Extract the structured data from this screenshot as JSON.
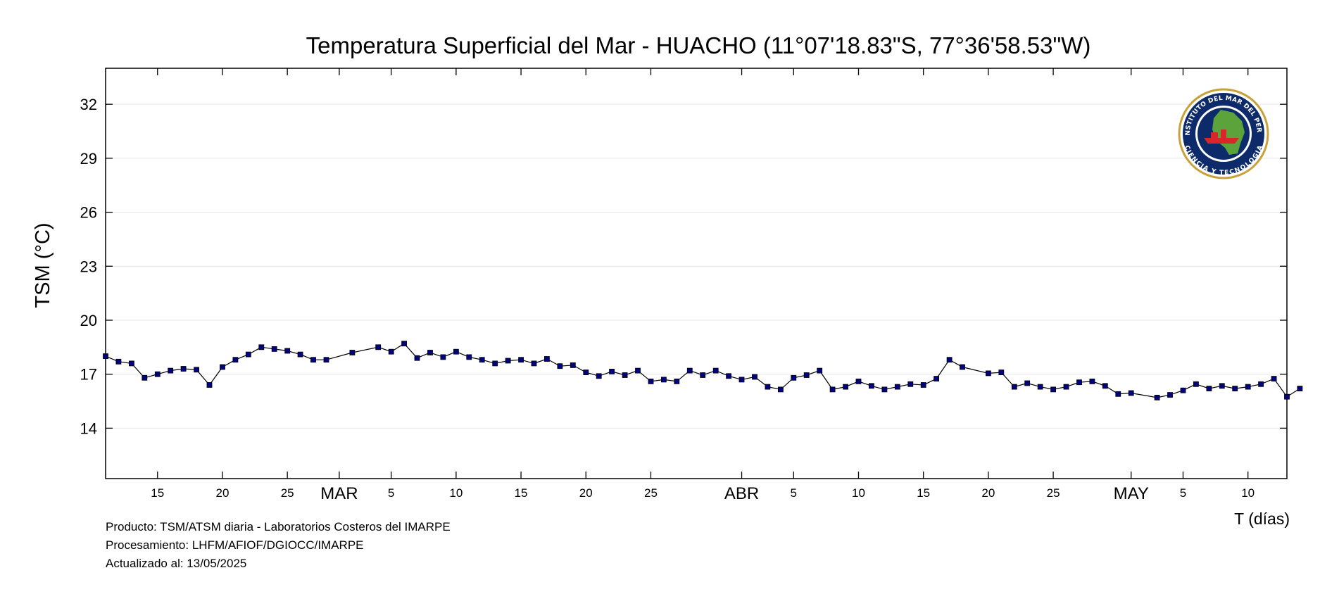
{
  "chart_data": {
    "type": "line",
    "title": "Temperatura Superficial del Mar - HUACHO (11°07'18.83\"S, 77°36'58.53\"W)",
    "ylabel": "TSM (°C)",
    "xlabel": "T (días)",
    "ylim": [
      11.2,
      34
    ],
    "yticks": [
      14,
      17,
      20,
      23,
      26,
      29,
      32
    ],
    "xlim": [
      "2025-02-11",
      "2025-05-13"
    ],
    "grid": "horizontal",
    "x_tick_labels": [
      {
        "date": "2025-02-15",
        "label": "15"
      },
      {
        "date": "2025-02-20",
        "label": "20"
      },
      {
        "date": "2025-02-25",
        "label": "25"
      },
      {
        "date": "2025-03-01",
        "label": "MAR",
        "month": true
      },
      {
        "date": "2025-03-05",
        "label": "5"
      },
      {
        "date": "2025-03-10",
        "label": "10"
      },
      {
        "date": "2025-03-15",
        "label": "15"
      },
      {
        "date": "2025-03-20",
        "label": "20"
      },
      {
        "date": "2025-03-25",
        "label": "25"
      },
      {
        "date": "2025-04-01",
        "label": "ABR",
        "month": true
      },
      {
        "date": "2025-04-05",
        "label": "5"
      },
      {
        "date": "2025-04-10",
        "label": "10"
      },
      {
        "date": "2025-04-15",
        "label": "15"
      },
      {
        "date": "2025-04-20",
        "label": "20"
      },
      {
        "date": "2025-04-25",
        "label": "25"
      },
      {
        "date": "2025-05-01",
        "label": "MAY",
        "month": true
      },
      {
        "date": "2025-05-05",
        "label": "5"
      },
      {
        "date": "2025-05-10",
        "label": "10"
      }
    ],
    "series": [
      {
        "color": "#000080",
        "points": [
          [
            "2025-02-11",
            18.0
          ],
          [
            "2025-02-12",
            17.7
          ],
          [
            "2025-02-13",
            17.6
          ],
          [
            "2025-02-14",
            16.8
          ],
          [
            "2025-02-15",
            17.0
          ],
          [
            "2025-02-16",
            17.2
          ],
          [
            "2025-02-17",
            17.3
          ],
          [
            "2025-02-18",
            17.25
          ],
          [
            "2025-02-19",
            16.4
          ],
          [
            "2025-02-20",
            17.4
          ],
          [
            "2025-02-21",
            17.8
          ],
          [
            "2025-02-22",
            18.1
          ],
          [
            "2025-02-23",
            18.5
          ],
          [
            "2025-02-24",
            18.4
          ],
          [
            "2025-02-25",
            18.3
          ],
          [
            "2025-02-26",
            18.1
          ],
          [
            "2025-02-27",
            17.8
          ],
          [
            "2025-02-28",
            17.8
          ],
          [
            "2025-03-02",
            18.2
          ],
          [
            "2025-03-04",
            18.5
          ],
          [
            "2025-03-05",
            18.25
          ],
          [
            "2025-03-06",
            18.7
          ],
          [
            "2025-03-07",
            17.9
          ],
          [
            "2025-03-08",
            18.2
          ],
          [
            "2025-03-09",
            17.95
          ],
          [
            "2025-03-10",
            18.25
          ],
          [
            "2025-03-11",
            17.95
          ],
          [
            "2025-03-12",
            17.8
          ],
          [
            "2025-03-13",
            17.6
          ],
          [
            "2025-03-14",
            17.75
          ],
          [
            "2025-03-15",
            17.8
          ],
          [
            "2025-03-16",
            17.6
          ],
          [
            "2025-03-17",
            17.85
          ],
          [
            "2025-03-18",
            17.45
          ],
          [
            "2025-03-19",
            17.5
          ],
          [
            "2025-03-20",
            17.1
          ],
          [
            "2025-03-21",
            16.9
          ],
          [
            "2025-03-22",
            17.15
          ],
          [
            "2025-03-23",
            16.95
          ],
          [
            "2025-03-24",
            17.2
          ],
          [
            "2025-03-25",
            16.6
          ],
          [
            "2025-03-26",
            16.7
          ],
          [
            "2025-03-27",
            16.6
          ],
          [
            "2025-03-28",
            17.2
          ],
          [
            "2025-03-29",
            16.95
          ],
          [
            "2025-03-30",
            17.2
          ],
          [
            "2025-03-31",
            16.9
          ],
          [
            "2025-04-01",
            16.7
          ],
          [
            "2025-04-02",
            16.85
          ],
          [
            "2025-04-03",
            16.3
          ],
          [
            "2025-04-04",
            16.15
          ],
          [
            "2025-04-05",
            16.8
          ],
          [
            "2025-04-06",
            16.95
          ],
          [
            "2025-04-07",
            17.2
          ],
          [
            "2025-04-08",
            16.15
          ],
          [
            "2025-04-09",
            16.3
          ],
          [
            "2025-04-10",
            16.6
          ],
          [
            "2025-04-11",
            16.35
          ],
          [
            "2025-04-12",
            16.15
          ],
          [
            "2025-04-13",
            16.3
          ],
          [
            "2025-04-14",
            16.45
          ],
          [
            "2025-04-15",
            16.4
          ],
          [
            "2025-04-16",
            16.75
          ],
          [
            "2025-04-17",
            17.8
          ],
          [
            "2025-04-18",
            17.4
          ],
          [
            "2025-04-20",
            17.05
          ],
          [
            "2025-04-21",
            17.1
          ],
          [
            "2025-04-22",
            16.3
          ],
          [
            "2025-04-23",
            16.5
          ],
          [
            "2025-04-24",
            16.3
          ],
          [
            "2025-04-25",
            16.15
          ],
          [
            "2025-04-26",
            16.3
          ],
          [
            "2025-04-27",
            16.55
          ],
          [
            "2025-04-28",
            16.6
          ],
          [
            "2025-04-29",
            16.35
          ],
          [
            "2025-04-30",
            15.9
          ],
          [
            "2025-05-01",
            15.95
          ],
          [
            "2025-05-03",
            15.7
          ],
          [
            "2025-05-04",
            15.85
          ],
          [
            "2025-05-05",
            16.1
          ],
          [
            "2025-05-06",
            16.45
          ],
          [
            "2025-05-07",
            16.2
          ],
          [
            "2025-05-08",
            16.35
          ],
          [
            "2025-05-09",
            16.2
          ],
          [
            "2025-05-10",
            16.3
          ],
          [
            "2025-05-11",
            16.45
          ],
          [
            "2025-05-12",
            16.75
          ],
          [
            "2025-05-13",
            15.75
          ],
          [
            "2025-05-14",
            16.2
          ]
        ]
      }
    ],
    "footer": [
      "Producto: TSM/ATSM diaria - Laboratorios Costeros del IMARPE",
      "Procesamiento: LHFM/AFIOF/DGIOCC/IMARPE",
      "Actualizado al: 13/05/2025"
    ]
  },
  "logo": {
    "top_text": "INSTITUTO DEL MAR DEL PERU",
    "bottom_text": "CIENCIA Y TECNOLOGIA",
    "ring_color": "#c7a23a",
    "inner_color": "#0d2b6b",
    "map_color": "#5ba33a",
    "ship_color": "#d8262a"
  }
}
